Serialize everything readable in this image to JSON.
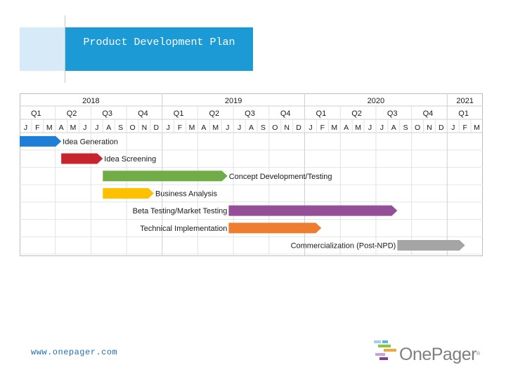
{
  "title": "Product Development Plan",
  "footer": {
    "url": "www.onepager.com"
  },
  "logo": {
    "name": "OnePager",
    "mark": "®"
  },
  "chart_data": {
    "type": "gantt",
    "years": [
      {
        "label": "2018",
        "start": 0,
        "end": 12
      },
      {
        "label": "2019",
        "start": 12,
        "end": 24
      },
      {
        "label": "2020",
        "start": 24,
        "end": 36
      },
      {
        "label": "2021",
        "start": 36,
        "end": 39
      }
    ],
    "quarters": [
      {
        "label": "Q1",
        "start": 0
      },
      {
        "label": "Q2",
        "start": 3
      },
      {
        "label": "Q3",
        "start": 6
      },
      {
        "label": "Q4",
        "start": 9
      },
      {
        "label": "Q1",
        "start": 12
      },
      {
        "label": "Q2",
        "start": 15
      },
      {
        "label": "Q3",
        "start": 18
      },
      {
        "label": "Q4",
        "start": 21
      },
      {
        "label": "Q1",
        "start": 24
      },
      {
        "label": "Q2",
        "start": 27
      },
      {
        "label": "Q3",
        "start": 30
      },
      {
        "label": "Q4",
        "start": 33
      },
      {
        "label": "Q1",
        "start": 36
      }
    ],
    "months": [
      "J",
      "F",
      "M",
      "A",
      "M",
      "J",
      "J",
      "A",
      "S",
      "O",
      "N",
      "D",
      "J",
      "F",
      "M",
      "A",
      "M",
      "J",
      "J",
      "A",
      "S",
      "O",
      "N",
      "D",
      "J",
      "F",
      "M",
      "A",
      "M",
      "J",
      "J",
      "A",
      "S",
      "O",
      "N",
      "D",
      "J",
      "F",
      "M"
    ],
    "tasks": [
      {
        "name": "Idea Generation",
        "start": 0.0,
        "end": 3.5,
        "color": "#1f7ed6",
        "label_side": "right"
      },
      {
        "name": "Idea Screening",
        "start": 3.5,
        "end": 7.0,
        "color": "#c8242e",
        "label_side": "right"
      },
      {
        "name": "Concept Development/Testing",
        "start": 7.0,
        "end": 17.5,
        "color": "#70ad47",
        "label_side": "right"
      },
      {
        "name": "Business Analysis",
        "start": 7.0,
        "end": 11.3,
        "color": "#ffc000",
        "label_side": "right"
      },
      {
        "name": "Beta Testing/Market Testing",
        "start": 17.6,
        "end": 31.8,
        "color": "#954f99",
        "label_side": "left"
      },
      {
        "name": "Technical Implementation",
        "start": 17.6,
        "end": 25.4,
        "color": "#ed7d31",
        "label_side": "left"
      },
      {
        "name": "Commercialization (Post-NPD)",
        "start": 31.8,
        "end": 37.5,
        "color": "#a5a5a5",
        "label_side": "left"
      }
    ]
  }
}
